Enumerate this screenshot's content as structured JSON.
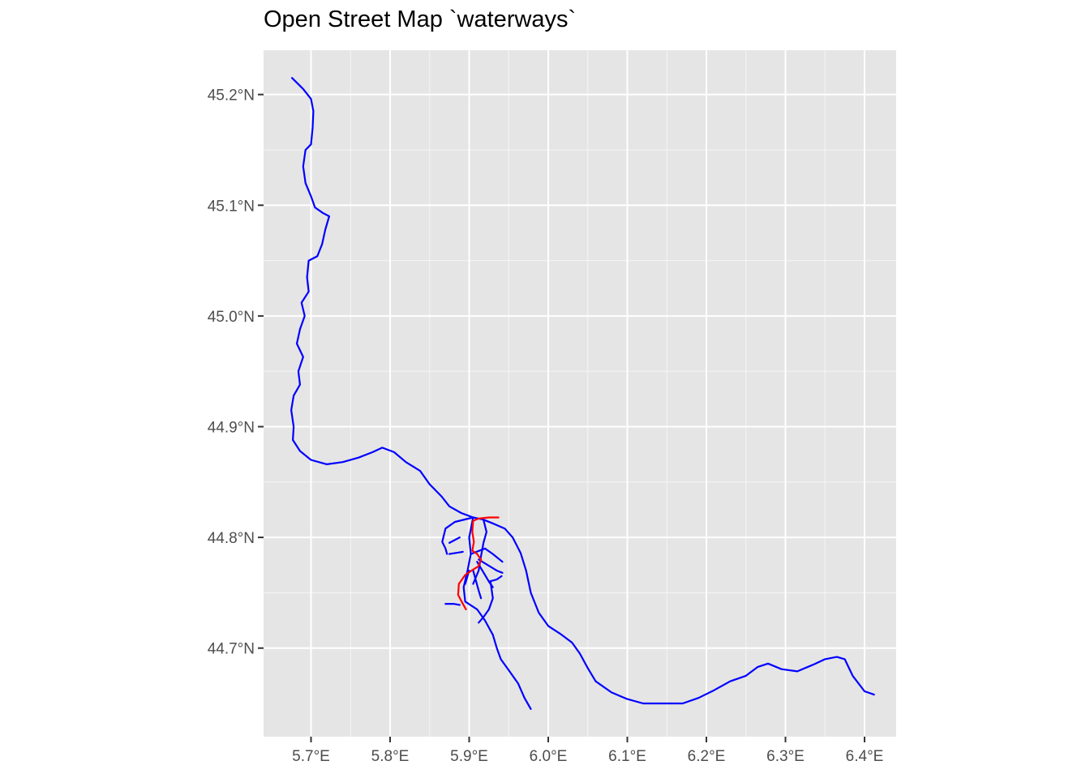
{
  "title": "Open Street Map `waterways`",
  "colors": {
    "panel_background": "#e5e5e5",
    "grid": "#ffffff",
    "main_waterways": "#0000ff",
    "highlight_waterway": "#ff0000",
    "tick_text": "#4d4d4d"
  },
  "chart_data": {
    "type": "map",
    "title": "Open Street Map `waterways`",
    "xlabel": "",
    "ylabel": "",
    "xlim": [
      5.64,
      6.44
    ],
    "ylim": [
      44.62,
      45.24
    ],
    "grid": true,
    "x_ticks": [
      {
        "value": 5.7,
        "label": "5.7°E"
      },
      {
        "value": 5.8,
        "label": "5.8°E"
      },
      {
        "value": 5.9,
        "label": "5.9°E"
      },
      {
        "value": 6.0,
        "label": "6.0°E"
      },
      {
        "value": 6.1,
        "label": "6.1°E"
      },
      {
        "value": 6.2,
        "label": "6.2°E"
      },
      {
        "value": 6.3,
        "label": "6.3°E"
      },
      {
        "value": 6.4,
        "label": "6.4°E"
      }
    ],
    "y_ticks": [
      {
        "value": 44.7,
        "label": "44.7°N"
      },
      {
        "value": 44.8,
        "label": "44.8°N"
      },
      {
        "value": 44.9,
        "label": "44.9°N"
      },
      {
        "value": 45.0,
        "label": "45.0°N"
      },
      {
        "value": 45.1,
        "label": "45.1°N"
      },
      {
        "value": 45.2,
        "label": "45.2°N"
      }
    ],
    "series": [
      {
        "color": "#0000ff",
        "lines": [
          [
            [
              5.676,
              45.215
            ],
            [
              5.69,
              45.205
            ],
            [
              5.7,
              45.196
            ],
            [
              5.703,
              45.185
            ],
            [
              5.702,
              45.17
            ],
            [
              5.7,
              45.155
            ],
            [
              5.693,
              45.15
            ],
            [
              5.69,
              45.135
            ],
            [
              5.693,
              45.12
            ],
            [
              5.7,
              45.108
            ],
            [
              5.705,
              45.098
            ],
            [
              5.715,
              45.093
            ],
            [
              5.723,
              45.09
            ],
            [
              5.718,
              45.078
            ],
            [
              5.714,
              45.065
            ],
            [
              5.708,
              45.054
            ],
            [
              5.697,
              45.05
            ],
            [
              5.695,
              45.035
            ],
            [
              5.697,
              45.022
            ],
            [
              5.688,
              45.012
            ],
            [
              5.692,
              45.0
            ],
            [
              5.686,
              44.988
            ],
            [
              5.682,
              44.975
            ],
            [
              5.69,
              44.963
            ],
            [
              5.684,
              44.95
            ],
            [
              5.686,
              44.938
            ],
            [
              5.678,
              44.928
            ],
            [
              5.675,
              44.915
            ],
            [
              5.678,
              44.9
            ],
            [
              5.677,
              44.888
            ],
            [
              5.686,
              44.878
            ],
            [
              5.7,
              44.87
            ],
            [
              5.72,
              44.866
            ],
            [
              5.74,
              44.868
            ],
            [
              5.76,
              44.872
            ],
            [
              5.778,
              44.877
            ],
            [
              5.79,
              44.881
            ],
            [
              5.805,
              44.877
            ],
            [
              5.82,
              44.868
            ],
            [
              5.838,
              44.86
            ],
            [
              5.85,
              44.848
            ],
            [
              5.865,
              44.837
            ],
            [
              5.875,
              44.828
            ],
            [
              5.89,
              44.822
            ],
            [
              5.905,
              44.818
            ],
            [
              5.918,
              44.816
            ],
            [
              5.932,
              44.812
            ],
            [
              5.945,
              44.808
            ],
            [
              5.955,
              44.8
            ],
            [
              5.965,
              44.786
            ],
            [
              5.972,
              44.77
            ],
            [
              5.978,
              44.75
            ],
            [
              5.988,
              44.732
            ],
            [
              6.0,
              44.72
            ],
            [
              6.015,
              44.713
            ],
            [
              6.03,
              44.705
            ],
            [
              6.04,
              44.695
            ],
            [
              6.05,
              44.682
            ],
            [
              6.06,
              44.67
            ],
            [
              6.08,
              44.66
            ],
            [
              6.1,
              44.654
            ],
            [
              6.12,
              44.65
            ],
            [
              6.15,
              44.65
            ],
            [
              6.17,
              44.65
            ],
            [
              6.19,
              44.655
            ],
            [
              6.21,
              44.662
            ],
            [
              6.23,
              44.67
            ],
            [
              6.25,
              44.675
            ],
            [
              6.265,
              44.683
            ],
            [
              6.278,
              44.686
            ],
            [
              6.295,
              44.681
            ],
            [
              6.315,
              44.679
            ],
            [
              6.335,
              44.685
            ],
            [
              6.35,
              44.69
            ],
            [
              6.365,
              44.692
            ],
            [
              6.375,
              44.69
            ],
            [
              6.385,
              44.675
            ],
            [
              6.4,
              44.661
            ],
            [
              6.412,
              44.658
            ]
          ],
          [
            [
              5.905,
              44.818
            ],
            [
              5.9,
              44.8
            ],
            [
              5.902,
              44.785
            ],
            [
              5.898,
              44.77
            ],
            [
              5.893,
              44.755
            ],
            [
              5.895,
              44.742
            ],
            [
              5.91,
              44.735
            ],
            [
              5.92,
              44.725
            ],
            [
              5.93,
              44.712
            ],
            [
              5.935,
              44.7
            ],
            [
              5.94,
              44.69
            ],
            [
              5.95,
              44.68
            ],
            [
              5.962,
              44.668
            ],
            [
              5.97,
              44.655
            ],
            [
              5.978,
              44.645
            ]
          ],
          [
            [
              5.905,
              44.818
            ],
            [
              5.882,
              44.814
            ],
            [
              5.87,
              44.808
            ],
            [
              5.866,
              44.796
            ],
            [
              5.87,
              44.79
            ],
            [
              5.872,
              44.785
            ]
          ],
          [
            [
              5.918,
              44.816
            ],
            [
              5.922,
              44.805
            ],
            [
              5.918,
              44.795
            ],
            [
              5.915,
              44.783
            ],
            [
              5.912,
              44.77
            ],
            [
              5.905,
              44.758
            ]
          ],
          [
            [
              5.875,
              44.795
            ],
            [
              5.888,
              44.8
            ]
          ],
          [
            [
              5.875,
              44.785
            ],
            [
              5.892,
              44.787
            ]
          ],
          [
            [
              5.902,
              44.785
            ],
            [
              5.92,
              44.79
            ],
            [
              5.93,
              44.785
            ],
            [
              5.942,
              44.778
            ]
          ],
          [
            [
              5.912,
              44.78
            ],
            [
              5.935,
              44.77
            ],
            [
              5.942,
              44.768
            ]
          ],
          [
            [
              5.91,
              44.778
            ],
            [
              5.925,
              44.76
            ],
            [
              5.93,
              44.755
            ]
          ],
          [
            [
              5.905,
              44.77
            ],
            [
              5.912,
              44.752
            ],
            [
              5.915,
              44.745
            ]
          ],
          [
            [
              5.9,
              44.77
            ],
            [
              5.895,
              44.758
            ]
          ],
          [
            [
              5.925,
              44.76
            ],
            [
              5.935,
              44.762
            ],
            [
              5.941,
              44.765
            ]
          ],
          [
            [
              5.927,
              44.76
            ],
            [
              5.93,
              44.745
            ],
            [
              5.925,
              44.735
            ],
            [
              5.918,
              44.728
            ],
            [
              5.912,
              44.723
            ]
          ],
          [
            [
              5.87,
              44.74
            ],
            [
              5.88,
              44.74
            ],
            [
              5.888,
              44.739
            ]
          ]
        ]
      },
      {
        "color": "#ff0000",
        "lines": [
          [
            [
              5.937,
              44.818
            ],
            [
              5.925,
              44.818
            ],
            [
              5.912,
              44.817
            ],
            [
              5.905,
              44.815
            ],
            [
              5.904,
              44.805
            ],
            [
              5.906,
              44.796
            ],
            [
              5.904,
              44.788
            ],
            [
              5.91,
              44.785
            ],
            [
              5.915,
              44.78
            ],
            [
              5.912,
              44.774
            ],
            [
              5.903,
              44.77
            ],
            [
              5.895,
              44.766
            ],
            [
              5.887,
              44.758
            ],
            [
              5.886,
              44.748
            ],
            [
              5.892,
              44.74
            ],
            [
              5.896,
              44.735
            ]
          ]
        ]
      }
    ]
  }
}
